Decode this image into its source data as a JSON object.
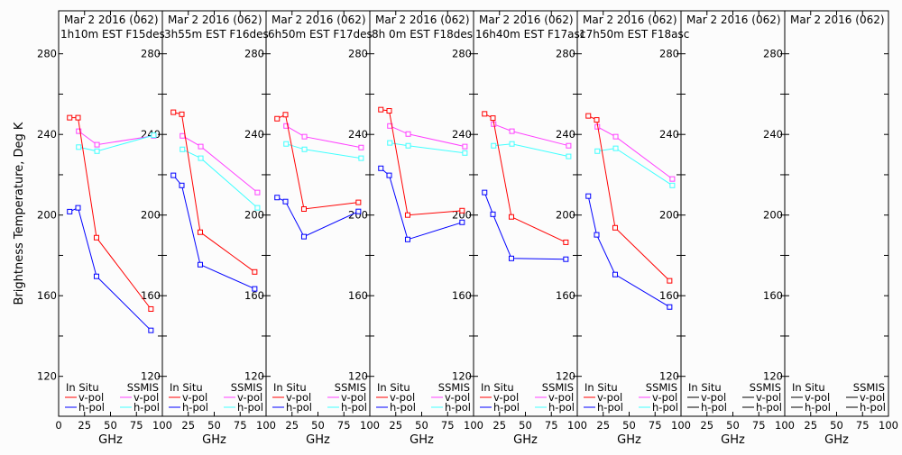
{
  "chart_data": {
    "type": "line",
    "ylabel": "Brightness Temperature, Deg K",
    "xlabel": "GHz",
    "xlim": [
      0,
      100
    ],
    "ylim": [
      100,
      300
    ],
    "xticks": [
      0,
      25,
      50,
      75,
      100
    ],
    "yticks": [
      120,
      160,
      200,
      240,
      280
    ],
    "grid": false,
    "legend": {
      "placement": "bottom",
      "group_in_situ": "In Situ",
      "group_ssmis": "SSMIS",
      "v_pol": "v-pol",
      "h_pol": "h-pol"
    },
    "colors": {
      "insitu_v": "#ff0000",
      "insitu_h": "#0000ff",
      "ssmis_v": "#ff40ff",
      "ssmis_h": "#40ffff",
      "empty": "#000000"
    },
    "insitu_freqs": [
      10.65,
      18.7,
      36.5,
      89.0
    ],
    "ssmis_freqs": [
      19.35,
      37.0,
      91.65
    ],
    "panels": [
      {
        "line1": "Mar 2 2016 (062)",
        "line2": "1h10m EST F15des",
        "insitu_v": [
          248.3,
          248.3,
          188.8,
          153.4
        ],
        "insitu_h": [
          201.7,
          203.6,
          169.6,
          142.8
        ],
        "ssmis_v": [
          241.6,
          234.9,
          239.3
        ],
        "ssmis_h": [
          233.7,
          231.7,
          239.6
        ]
      },
      {
        "line1": "Mar 2 2016 (062)",
        "line2": "3h55m EST F16des",
        "insitu_v": [
          251.0,
          250.0,
          191.5,
          171.8
        ],
        "insitu_h": [
          219.7,
          214.7,
          175.4,
          163.4
        ],
        "ssmis_v": [
          239.3,
          234.0,
          211.2
        ],
        "ssmis_h": [
          232.6,
          228.2,
          203.6
        ]
      },
      {
        "line1": "Mar 2 2016 (062)",
        "line2": "6h50m EST F17des",
        "insitu_v": [
          247.8,
          249.8,
          203.0,
          206.3
        ],
        "insitu_h": [
          208.7,
          206.7,
          189.3,
          201.8
        ],
        "ssmis_v": [
          244.2,
          238.9,
          233.5
        ],
        "ssmis_h": [
          235.3,
          232.6,
          228.2
        ]
      },
      {
        "line1": "Mar 2 2016 (062)",
        "line2": "8h 0m EST F18des",
        "insitu_v": [
          252.3,
          251.7,
          200.0,
          202.2
        ],
        "insitu_h": [
          223.2,
          219.7,
          187.9,
          196.4
        ],
        "ssmis_v": [
          244.2,
          240.2,
          234.0
        ],
        "ssmis_h": [
          235.8,
          234.4,
          230.8
        ]
      },
      {
        "line1": "Mar 2 2016 (062)",
        "line2": "16h40m EST F17asc",
        "insitu_v": [
          250.2,
          248.1,
          199.1,
          186.5
        ],
        "insitu_h": [
          211.2,
          200.4,
          178.5,
          178.1
        ],
        "ssmis_v": [
          245.1,
          241.6,
          234.4
        ],
        "ssmis_h": [
          234.4,
          235.3,
          229.1
        ]
      },
      {
        "line1": "Mar 2 2016 (062)",
        "line2": "17h50m EST F18asc",
        "insitu_v": [
          249.2,
          247.2,
          193.7,
          167.4
        ],
        "insitu_h": [
          209.4,
          190.2,
          170.5,
          154.4
        ],
        "ssmis_v": [
          243.8,
          238.9,
          217.9
        ],
        "ssmis_h": [
          231.7,
          233.1,
          214.7
        ]
      },
      {
        "line1": "Mar 2 2016 (062)",
        "line2": "",
        "insitu_v": [],
        "insitu_h": [],
        "ssmis_v": [],
        "ssmis_h": []
      },
      {
        "line1": "Mar 2 2016 (062)",
        "line2": "",
        "insitu_v": [],
        "insitu_h": [],
        "ssmis_v": [],
        "ssmis_h": []
      }
    ]
  }
}
